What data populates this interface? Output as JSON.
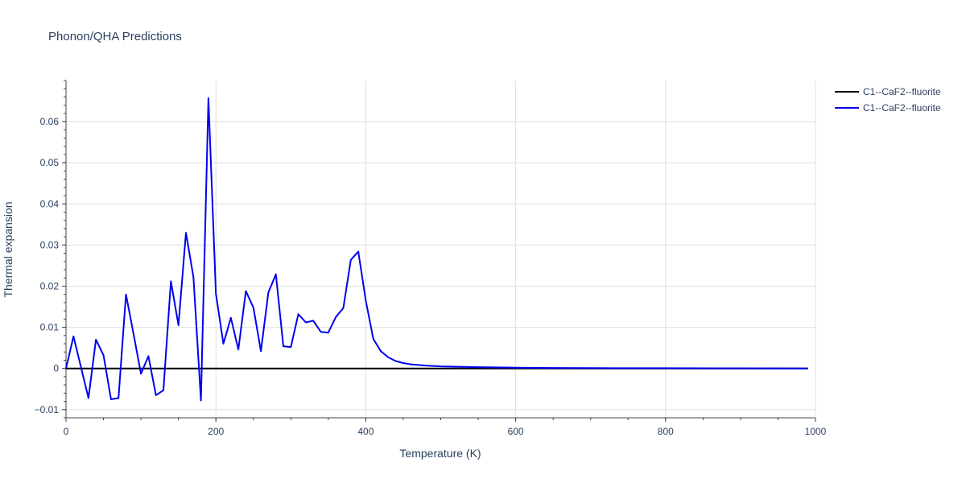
{
  "chart_data": {
    "type": "line",
    "title": "Phonon/QHA Predictions",
    "xlabel": "Temperature (K)",
    "ylabel": "Thermal expansion",
    "xlim": [
      0,
      1000
    ],
    "ylim": [
      -0.012,
      0.07
    ],
    "xticks": [
      0,
      200,
      400,
      600,
      800,
      1000
    ],
    "xtick_labels": [
      "0",
      "200",
      "400",
      "600",
      "800",
      "1000"
    ],
    "yticks": [
      -0.01,
      0,
      0.01,
      0.02,
      0.03,
      0.04,
      0.05,
      0.06
    ],
    "ytick_labels": [
      "−0.01",
      "0",
      "0.01",
      "0.02",
      "0.03",
      "0.04",
      "0.05",
      "0.06"
    ],
    "grid": true,
    "legend_position": "top-right",
    "series": [
      {
        "name": "C1--CaF2--fluorite",
        "color": "#000000",
        "x": [
          0,
          100,
          200,
          300,
          400,
          500,
          600,
          700,
          800,
          900,
          990
        ],
        "y": [
          0,
          0,
          0,
          0,
          0,
          0,
          0,
          0,
          0,
          0,
          0
        ]
      },
      {
        "name": "C1--CaF2--fluorite",
        "color": "#0000ee",
        "x": [
          0,
          10,
          20,
          30,
          40,
          50,
          60,
          70,
          80,
          90,
          100,
          110,
          120,
          130,
          140,
          150,
          160,
          170,
          180,
          190,
          200,
          210,
          220,
          230,
          240,
          250,
          260,
          270,
          280,
          290,
          300,
          310,
          320,
          330,
          340,
          350,
          360,
          370,
          380,
          390,
          400,
          410,
          420,
          430,
          440,
          450,
          460,
          480,
          500,
          550,
          600,
          650,
          700,
          800,
          900,
          990
        ],
        "y": [
          0,
          0.0078,
          0.0003,
          -0.0072,
          0.007,
          0.0032,
          -0.0075,
          -0.0072,
          0.018,
          0.0085,
          -0.0013,
          0.003,
          -0.0065,
          -0.0053,
          0.0212,
          0.0105,
          0.033,
          0.0222,
          -0.0078,
          0.0657,
          0.0182,
          0.006,
          0.0123,
          0.0046,
          0.0188,
          0.0148,
          0.0042,
          0.0185,
          0.0229,
          0.0054,
          0.0052,
          0.0132,
          0.0112,
          0.0116,
          0.0089,
          0.0087,
          0.0125,
          0.0147,
          0.0264,
          0.0284,
          0.0165,
          0.0072,
          0.0042,
          0.0027,
          0.0018,
          0.0013,
          0.001,
          0.0007,
          0.0005,
          0.0003,
          0.0002,
          0.00012,
          8e-05,
          5e-05,
          3e-05,
          2e-05
        ]
      }
    ]
  }
}
